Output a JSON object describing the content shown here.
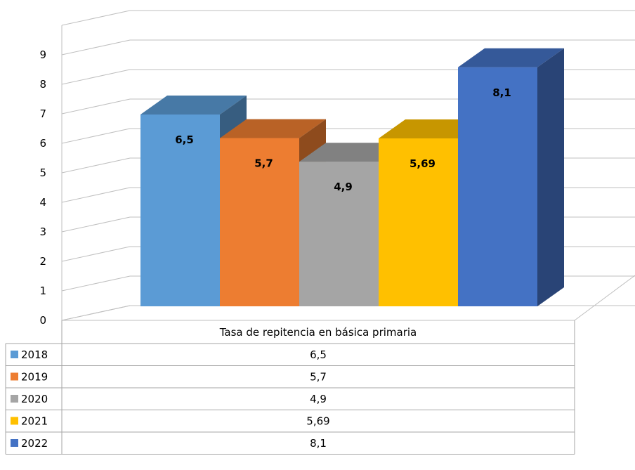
{
  "chart_data": {
    "type": "bar",
    "style": "3d-clustered-with-data-table",
    "categories": [
      "Tasa de repitencia en básica primaria"
    ],
    "series": [
      {
        "name": "2018",
        "values": [
          6.5
        ],
        "label": "6,5",
        "color": "#5b9bd5"
      },
      {
        "name": "2019",
        "values": [
          5.7
        ],
        "label": "5,7",
        "color": "#ed7d31"
      },
      {
        "name": "2020",
        "values": [
          4.9
        ],
        "label": "4,9",
        "color": "#a5a5a5"
      },
      {
        "name": "2021",
        "values": [
          5.69
        ],
        "label": "5,69",
        "color": "#ffc000"
      },
      {
        "name": "2022",
        "values": [
          8.1
        ],
        "label": "8,1",
        "color": "#4472c4"
      }
    ],
    "yticks": [
      "0",
      "1",
      "2",
      "3",
      "4",
      "5",
      "6",
      "7",
      "8",
      "9"
    ],
    "ylim": [
      0,
      10
    ],
    "grid": true,
    "legend": "data-table-bottom",
    "title": "",
    "xlabel": "",
    "ylabel": ""
  }
}
